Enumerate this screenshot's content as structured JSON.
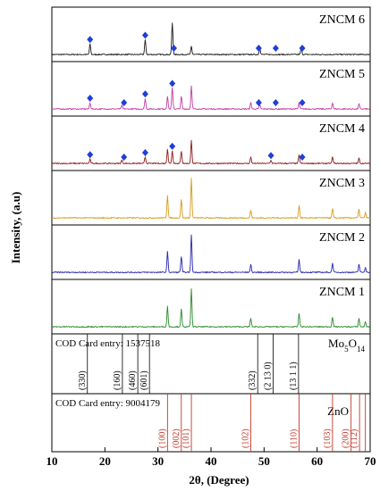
{
  "chart_data": {
    "type": "line",
    "xlabel": "2θ, (Degree)",
    "ylabel": "Intensity, (a.u)",
    "xlim": [
      10,
      70
    ],
    "x_ticks": [
      10,
      20,
      30,
      40,
      50,
      60,
      70
    ],
    "grid": false,
    "colors": {
      "ZNCM 6": "#1a1a1a",
      "ZNCM 5": "#c03aa6",
      "ZNCM 4": "#8b1a1a",
      "ZNCM 3": "#d99a1a",
      "ZNCM 2": "#2323b0",
      "ZNCM 1": "#2a8a2a",
      "marker": "#1f3fd6",
      "mo_ref": "#000000",
      "zno_ref": "#c0392b"
    },
    "series": [
      {
        "name": "ZNCM 6",
        "peaks": [
          [
            17.2,
            0.25
          ],
          [
            27.6,
            0.35
          ],
          [
            32.7,
            0.75
          ],
          [
            36.3,
            0.2
          ],
          [
            49.2,
            0.15
          ],
          [
            57.0,
            0.15
          ]
        ],
        "markers": [
          17.2,
          27.6,
          33.0,
          49.0,
          52.2,
          57.2
        ]
      },
      {
        "name": "ZNCM 5",
        "peaks": [
          [
            17.2,
            0.15
          ],
          [
            23.2,
            0.08
          ],
          [
            27.6,
            0.25
          ],
          [
            31.8,
            0.3
          ],
          [
            32.7,
            0.5
          ],
          [
            34.4,
            0.3
          ],
          [
            36.3,
            0.55
          ],
          [
            47.5,
            0.15
          ],
          [
            49.2,
            0.1
          ],
          [
            56.6,
            0.15
          ],
          [
            62.9,
            0.15
          ],
          [
            67.9,
            0.12
          ]
        ],
        "markers": [
          17.2,
          23.6,
          27.6,
          32.7,
          49.0,
          52.2,
          57.2
        ]
      },
      {
        "name": "ZNCM 4",
        "peaks": [
          [
            17.2,
            0.1
          ],
          [
            23.2,
            0.08
          ],
          [
            27.6,
            0.15
          ],
          [
            31.8,
            0.35
          ],
          [
            32.7,
            0.3
          ],
          [
            34.4,
            0.3
          ],
          [
            36.3,
            0.55
          ],
          [
            47.5,
            0.15
          ],
          [
            51.3,
            0.08
          ],
          [
            56.6,
            0.2
          ],
          [
            62.9,
            0.15
          ],
          [
            67.9,
            0.12
          ]
        ],
        "markers": [
          17.2,
          23.6,
          27.6,
          32.7,
          51.3,
          57.2
        ]
      },
      {
        "name": "ZNCM 3",
        "peaks": [
          [
            31.8,
            0.55
          ],
          [
            34.4,
            0.45
          ],
          [
            36.3,
            0.95
          ],
          [
            47.5,
            0.18
          ],
          [
            56.6,
            0.3
          ],
          [
            62.9,
            0.22
          ],
          [
            67.9,
            0.2
          ],
          [
            69.1,
            0.12
          ]
        ],
        "markers": []
      },
      {
        "name": "ZNCM 2",
        "peaks": [
          [
            31.8,
            0.5
          ],
          [
            34.4,
            0.38
          ],
          [
            36.3,
            0.9
          ],
          [
            47.5,
            0.18
          ],
          [
            56.6,
            0.3
          ],
          [
            62.9,
            0.22
          ],
          [
            67.9,
            0.2
          ],
          [
            69.1,
            0.12
          ]
        ],
        "markers": []
      },
      {
        "name": "ZNCM 1",
        "peaks": [
          [
            31.8,
            0.5
          ],
          [
            34.4,
            0.42
          ],
          [
            36.3,
            0.92
          ],
          [
            47.5,
            0.2
          ],
          [
            56.6,
            0.32
          ],
          [
            62.9,
            0.24
          ],
          [
            67.9,
            0.2
          ],
          [
            69.1,
            0.12
          ]
        ],
        "markers": []
      }
    ],
    "reference_mo": {
      "entry_text": "COD Card entry: 1537518",
      "phase_main": "Mo",
      "phase_sub1": "5",
      "phase_mid": "O",
      "phase_sub2": "14",
      "lines": [
        {
          "x": 16.7,
          "label": "(330)"
        },
        {
          "x": 23.3,
          "label": "(160)"
        },
        {
          "x": 26.2,
          "label": "(460)"
        },
        {
          "x": 28.4,
          "label": "(601)"
        },
        {
          "x": 48.8,
          "label": "(332)"
        },
        {
          "x": 51.7,
          "label": "(2 13 0)"
        },
        {
          "x": 56.5,
          "label": "(13 1 1)"
        }
      ]
    },
    "reference_zno": {
      "entry_text": "COD Card entry: 9004179",
      "phase": "ZnO",
      "lines": [
        {
          "x": 31.8,
          "label": "(100)"
        },
        {
          "x": 34.4,
          "label": "(002)"
        },
        {
          "x": 36.3,
          "label": "(101)"
        },
        {
          "x": 47.5,
          "label": "(102)"
        },
        {
          "x": 56.6,
          "label": "(110)"
        },
        {
          "x": 62.9,
          "label": "(103)"
        },
        {
          "x": 66.4,
          "label": "(200)"
        },
        {
          "x": 68.0,
          "label": "(112)"
        },
        {
          "x": 69.1,
          "label": ""
        }
      ]
    }
  }
}
